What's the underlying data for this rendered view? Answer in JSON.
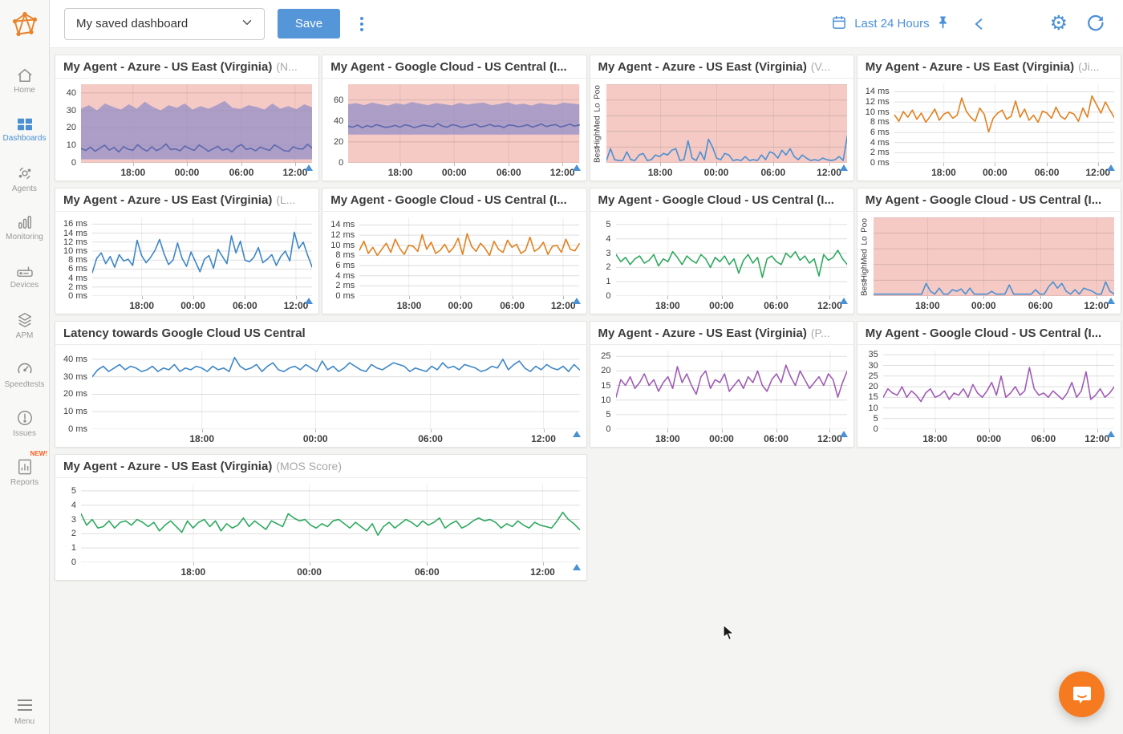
{
  "topbar": {
    "dashboard_selector": "My saved dashboard",
    "save_label": "Save",
    "time_range": "Last 24 Hours"
  },
  "sidebar": {
    "items": [
      {
        "label": "Home",
        "icon": "home-icon",
        "active": false
      },
      {
        "label": "Dashboards",
        "icon": "dashboards-icon",
        "active": true
      },
      {
        "label": "Agents",
        "icon": "agents-icon",
        "active": false
      },
      {
        "label": "Monitoring",
        "icon": "monitoring-icon",
        "active": false
      },
      {
        "label": "Devices",
        "icon": "devices-icon",
        "active": false
      },
      {
        "label": "APM",
        "icon": "apm-icon",
        "active": false
      },
      {
        "label": "Speedtests",
        "icon": "speedtests-icon",
        "active": false
      },
      {
        "label": "Issues",
        "icon": "issues-icon",
        "active": false
      },
      {
        "label": "Reports",
        "icon": "reports-icon",
        "active": false,
        "badge": "NEW!"
      }
    ],
    "menu_label": "Menu"
  },
  "colors": {
    "accent_blue": "#4a90d2",
    "line_blue": "#3e86c6",
    "line_orange": "#e2801f",
    "line_green": "#2fa95f",
    "line_purple": "#a05cb5",
    "band_line": "#5c68ad",
    "band_fill": "#9a92c5",
    "alert_pink": "#f5cac5"
  },
  "chart_data": [
    {
      "type": "line",
      "title": "My Agent - Azure - US East (Virginia)",
      "suffix": "(N...",
      "wide": false,
      "ylim": [
        0,
        45
      ],
      "y_tick_vals": [
        0,
        10,
        20,
        30,
        40
      ],
      "y_tick_labels": [
        "0",
        "10",
        "20",
        "30",
        "40"
      ],
      "bg_alert": true,
      "band": {
        "low": 2,
        "top": [
          31,
          33,
          30,
          34,
          32,
          30.5,
          33.5,
          31,
          35,
          32,
          30,
          33,
          31.5,
          34,
          30.5,
          32.5,
          31,
          33,
          35.5,
          31.5,
          30.8,
          33,
          32,
          30.5,
          34,
          31,
          32.5,
          30.7,
          33.5,
          31.8
        ]
      },
      "line_color": "band_line",
      "values": [
        8.2,
        7.1,
        9.0,
        6.6,
        8.4,
        10.1,
        7.3,
        8.8,
        6.2,
        9.3,
        7.8,
        7.2,
        10.4,
        8.1,
        6.7,
        9.2,
        7.0,
        8.3,
        10.8,
        7.6,
        8.0,
        6.9,
        9.6,
        8.2,
        7.1,
        10.2,
        8.6,
        6.6,
        8.1,
        9.4,
        7.2,
        8.0,
        6.3,
        9.1,
        10.5,
        7.7,
        8.3,
        6.9,
        9.0,
        7.9,
        7.1,
        10.3,
        8.7,
        7.0,
        6.6,
        9.2,
        8.1,
        7.9,
        10.6,
        8.4
      ]
    },
    {
      "type": "line",
      "title": "My Agent - Google Cloud - US Central (I...",
      "suffix": "",
      "wide": false,
      "ylim": [
        0,
        75
      ],
      "y_tick_vals": [
        0,
        20,
        40,
        60
      ],
      "y_tick_labels": [
        "0",
        "20",
        "40",
        "60"
      ],
      "bg_alert": true,
      "band": {
        "low": 27,
        "top": [
          56,
          57,
          55,
          57.5,
          56,
          54.5,
          57,
          55.5,
          58,
          56.5,
          55,
          57,
          56,
          54.8,
          57.2,
          55.6,
          56.8,
          57.5,
          55,
          56.2,
          57.8,
          55.4,
          56.5,
          54.6,
          57,
          56,
          55.2,
          57.4,
          56.6,
          55.8
        ]
      },
      "line_color": "band_line",
      "values": [
        35,
        34,
        36,
        33.5,
        35.5,
        34.2,
        36.5,
        35,
        33.8,
        34.6,
        35.8,
        34,
        36.2,
        35.4,
        33.6,
        34.8,
        36,
        35.2,
        34.4,
        37.5,
        35,
        34,
        36.4,
        35.6,
        33.9,
        34.7,
        35.9,
        36.8,
        34.3,
        35.1,
        36.6,
        34.9,
        35.3,
        33.7,
        36.1,
        35.7,
        34.5,
        35,
        36.3,
        34.1,
        35.5,
        37,
        34.6,
        35.8,
        36.5,
        34.2,
        35.4,
        36.9,
        35.0,
        36.2
      ]
    },
    {
      "type": "line",
      "title": "My Agent - Azure - US East (Virginia)",
      "suffix": "(V...",
      "wide": false,
      "ylim": [
        0,
        5
      ],
      "y_tick_vals": [
        0,
        1,
        2,
        3,
        4,
        5
      ],
      "y_tick_labels": [],
      "y_cat_labels": [
        "Poo",
        "Lo",
        "Med",
        "High",
        "Best"
      ],
      "bg_alert": true,
      "line_color": "accent_blue",
      "values": [
        0.15,
        0.9,
        0.2,
        0.15,
        0.15,
        0.7,
        0.2,
        0.15,
        0.5,
        0.6,
        0.15,
        0.2,
        0.5,
        0.4,
        0.6,
        0.5,
        0.8,
        0.9,
        0.15,
        0.2,
        1.4,
        0.3,
        0.15,
        0.7,
        0.2,
        1.5,
        1.0,
        0.3,
        0.2,
        0.6,
        0.5,
        0.15,
        0.2,
        0.15,
        0.4,
        0.15,
        0.2,
        0.15,
        0.5,
        0.2,
        0.7,
        0.6,
        0.3,
        0.8,
        0.5,
        0.9,
        0.4,
        0.2,
        0.5,
        0.3,
        0.15,
        0.2,
        0.15,
        0.3,
        0.2,
        0.15,
        0.2,
        0.4,
        0.15,
        1.7
      ]
    },
    {
      "type": "line",
      "title": "My Agent - Azure - US East (Virginia)",
      "suffix": "(Ji...",
      "wide": false,
      "ylim": [
        0,
        15.5
      ],
      "y_tick_vals": [
        0,
        2,
        4,
        6,
        8,
        10,
        12,
        14
      ],
      "y_tick_labels": [
        "0 ms",
        "2 ms",
        "4 ms",
        "6 ms",
        "8 ms",
        "10 ms",
        "12 ms",
        "14 ms"
      ],
      "bg_alert": false,
      "line_color": "line_orange",
      "values": [
        9.5,
        8.2,
        10.1,
        9.0,
        10.4,
        8.6,
        9.8,
        8.0,
        9.2,
        10.6,
        8.4,
        9.6,
        10.0,
        8.8,
        9.4,
        12.8,
        10.2,
        9.0,
        8.2,
        10.8,
        9.6,
        6.1,
        8.8,
        9.8,
        10.4,
        8.6,
        9.2,
        12.2,
        9.0,
        10.6,
        8.4,
        9.4,
        8.0,
        10.2,
        9.8,
        8.8,
        11.0,
        9.2,
        8.6,
        10.0,
        9.6,
        8.2,
        10.8,
        9.0,
        13.2,
        11.5,
        9.8,
        12.0,
        10.4,
        8.9
      ]
    },
    {
      "type": "line",
      "title": "My Agent - Azure - US East (Virginia)",
      "suffix": "(L...",
      "wide": false,
      "ylim": [
        0,
        17.5
      ],
      "y_tick_vals": [
        0,
        2,
        4,
        6,
        8,
        10,
        12,
        14,
        16
      ],
      "y_tick_labels": [
        "0 ms",
        "2 ms",
        "4 ms",
        "6 ms",
        "8 ms",
        "10 ms",
        "12 ms",
        "14 ms",
        "16 ms"
      ],
      "bg_alert": false,
      "line_color": "line_blue",
      "values": [
        5.2,
        8.4,
        9.6,
        7.2,
        8.8,
        6.4,
        9.2,
        7.8,
        8.2,
        6.8,
        12.4,
        9.0,
        7.4,
        8.6,
        10.2,
        12.6,
        9.4,
        7.0,
        8.0,
        11.8,
        8.4,
        6.6,
        9.8,
        7.6,
        5.4,
        8.2,
        9.0,
        6.2,
        10.4,
        8.8,
        7.2,
        13.4,
        9.6,
        12.2,
        8.0,
        7.6,
        8.6,
        10.8,
        7.4,
        8.2,
        9.2,
        6.8,
        8.8,
        10.0,
        7.8,
        14.2,
        10.6,
        12.0,
        9.0,
        6.4
      ]
    },
    {
      "type": "line",
      "title": "My Agent - Google Cloud - US Central (I...",
      "suffix": "",
      "wide": false,
      "ylim": [
        0,
        15.5
      ],
      "y_tick_vals": [
        0,
        2,
        4,
        6,
        8,
        10,
        12,
        14
      ],
      "y_tick_labels": [
        "0 ms",
        "2 ms",
        "4 ms",
        "6 ms",
        "8 ms",
        "10 ms",
        "12 ms",
        "14 ms"
      ],
      "bg_alert": false,
      "line_color": "line_orange",
      "values": [
        9.0,
        10.8,
        8.4,
        9.6,
        8.0,
        9.2,
        10.4,
        8.6,
        11.2,
        9.4,
        8.2,
        10.0,
        9.8,
        8.8,
        12.1,
        9.2,
        10.6,
        8.4,
        9.0,
        10.2,
        8.6,
        9.6,
        11.4,
        8.2,
        12.3,
        9.8,
        8.8,
        10.4,
        9.4,
        8.0,
        10.8,
        9.2,
        8.6,
        11.0,
        9.6,
        10.2,
        8.4,
        9.0,
        11.6,
        8.8,
        9.4,
        10.6,
        8.2,
        9.8,
        10.0,
        8.6,
        11.2,
        9.2,
        8.9,
        10.3
      ]
    },
    {
      "type": "line",
      "title": "My Agent - Google Cloud - US Central (I...",
      "suffix": "",
      "wide": false,
      "ylim": [
        0,
        5.5
      ],
      "y_tick_vals": [
        0,
        1,
        2,
        3,
        4,
        5
      ],
      "y_tick_labels": [
        "0",
        "1",
        "2",
        "3",
        "4",
        "5"
      ],
      "bg_alert": false,
      "line_color": "line_green",
      "values": [
        2.9,
        2.4,
        2.7,
        2.2,
        2.6,
        2.8,
        2.3,
        2.5,
        2.9,
        2.1,
        2.6,
        2.4,
        3.1,
        2.7,
        2.2,
        2.8,
        2.5,
        2.3,
        2.9,
        2.6,
        2.0,
        2.7,
        2.4,
        2.8,
        2.2,
        2.6,
        1.6,
        2.5,
        2.9,
        2.3,
        2.7,
        1.3,
        2.6,
        2.8,
        2.4,
        2.2,
        3.0,
        2.7,
        3.1,
        2.5,
        2.8,
        2.3,
        2.6,
        1.4,
        2.9,
        2.5,
        2.7,
        3.2,
        2.6,
        2.2
      ]
    },
    {
      "type": "line",
      "title": "My Agent - Google Cloud - US Central (I...",
      "suffix": "",
      "wide": false,
      "ylim": [
        0,
        5
      ],
      "y_tick_vals": [
        0,
        1,
        2,
        3,
        4,
        5
      ],
      "y_tick_labels": [],
      "y_cat_labels": [
        "Poo",
        "Lo",
        "Med",
        "High",
        "Best"
      ],
      "bg_alert": true,
      "line_color": "accent_blue",
      "values": [
        0.12,
        0.12,
        0.12,
        0.12,
        0.12,
        0.12,
        0.12,
        0.12,
        0.12,
        0.12,
        0.12,
        0.12,
        0.8,
        0.3,
        0.12,
        0.5,
        0.12,
        0.12,
        0.4,
        0.3,
        0.45,
        0.12,
        0.5,
        0.12,
        0.12,
        0.12,
        0.12,
        0.3,
        0.12,
        0.12,
        0.12,
        0.7,
        0.12,
        0.12,
        0.12,
        0.12,
        0.12,
        0.4,
        0.12,
        0.12,
        0.6,
        0.9,
        0.5,
        0.8,
        0.3,
        0.12,
        0.4,
        0.12,
        0.5,
        0.4,
        0.3,
        0.12,
        0.12,
        0.9,
        0.3,
        0.12
      ]
    },
    {
      "type": "line",
      "title": "Latency towards Google Cloud US Central",
      "suffix": "",
      "wide": true,
      "ylim": [
        0,
        45
      ],
      "y_tick_vals": [
        0,
        10,
        20,
        30,
        40
      ],
      "y_tick_labels": [
        "0 ms",
        "10 ms",
        "20 ms",
        "30 ms",
        "40 ms"
      ],
      "bg_alert": false,
      "line_color": "line_blue",
      "values": [
        30,
        34,
        36,
        33,
        35,
        37,
        34,
        36,
        35,
        33,
        34,
        36,
        33,
        35,
        34,
        37,
        33,
        35,
        34,
        36,
        35,
        33,
        36,
        34,
        35,
        33,
        41,
        36,
        34,
        35,
        37,
        33,
        36,
        38,
        34,
        33,
        35,
        36,
        34,
        37,
        35,
        33,
        39,
        34,
        36,
        33,
        35,
        38,
        36,
        34,
        33,
        37,
        35,
        34,
        36,
        38,
        37,
        36,
        33,
        35,
        34,
        33,
        36,
        34,
        38,
        35,
        36,
        34,
        37,
        36,
        35,
        33,
        34,
        36,
        35,
        40,
        34,
        37,
        39,
        35,
        33,
        36,
        34,
        37,
        35,
        34,
        36,
        33,
        37,
        34
      ]
    },
    {
      "type": "line",
      "title": "My Agent - Azure - US East (Virginia)",
      "suffix": "(P...",
      "wide": false,
      "ylim": [
        0,
        27
      ],
      "y_tick_vals": [
        0,
        5,
        10,
        15,
        20,
        25
      ],
      "y_tick_labels": [
        "0",
        "5",
        "10",
        "15",
        "20",
        "25"
      ],
      "bg_alert": false,
      "line_color": "line_purple",
      "values": [
        11,
        17,
        15,
        18,
        14,
        16,
        19,
        15,
        17,
        13,
        16,
        18,
        14,
        21.5,
        16,
        19,
        15,
        12,
        18,
        20,
        14,
        17,
        16,
        19,
        13,
        15,
        17,
        14,
        18,
        16,
        20,
        15,
        13,
        17,
        19,
        16,
        22,
        18,
        15,
        20,
        17,
        14,
        16,
        18,
        15,
        19,
        17,
        11,
        16,
        20
      ]
    },
    {
      "type": "line",
      "title": "My Agent - Google Cloud - US Central (I...",
      "suffix": "",
      "wide": false,
      "ylim": [
        0,
        37
      ],
      "y_tick_vals": [
        0,
        5,
        10,
        15,
        20,
        25,
        30,
        35
      ],
      "y_tick_labels": [
        "0",
        "5",
        "10",
        "15",
        "20",
        "25",
        "30",
        "35"
      ],
      "bg_alert": false,
      "line_color": "line_purple",
      "values": [
        15,
        19,
        17,
        16,
        20,
        15,
        18,
        16,
        13,
        17,
        19,
        15,
        16,
        18,
        14,
        17,
        16,
        19,
        15,
        21,
        17,
        15,
        18,
        22,
        16,
        25,
        15,
        17,
        20,
        16,
        18,
        29,
        19,
        16,
        17,
        15,
        18,
        16,
        14,
        17,
        22,
        15,
        18,
        27,
        14,
        16,
        19,
        15,
        17,
        20
      ]
    },
    {
      "type": "line",
      "title": "My Agent - Azure - US East (Virginia)",
      "suffix": "(MOS Score)",
      "wide": true,
      "ylim": [
        0,
        5.5
      ],
      "y_tick_vals": [
        0,
        1,
        2,
        3,
        4,
        5
      ],
      "y_tick_labels": [
        "0",
        "1",
        "2",
        "3",
        "4",
        "5"
      ],
      "bg_alert": false,
      "line_color": "line_green",
      "values": [
        3.4,
        2.6,
        3.0,
        2.4,
        2.5,
        2.9,
        2.4,
        2.8,
        2.9,
        2.6,
        3.0,
        2.8,
        2.5,
        2.8,
        2.2,
        2.6,
        2.9,
        2.5,
        2.1,
        2.9,
        2.4,
        2.8,
        3.0,
        2.5,
        2.9,
        2.2,
        2.7,
        2.4,
        2.6,
        3.1,
        2.5,
        2.9,
        2.6,
        2.3,
        2.9,
        2.7,
        2.5,
        3.4,
        3.1,
        2.9,
        3.0,
        2.6,
        2.4,
        2.7,
        2.5,
        2.9,
        3.0,
        2.7,
        2.4,
        2.8,
        2.5,
        2.2,
        2.7,
        1.9,
        2.5,
        2.8,
        2.4,
        2.7,
        3.0,
        2.8,
        2.5,
        2.9,
        2.6,
        2.8,
        3.1,
        2.4,
        2.7,
        2.9,
        2.4,
        2.6,
        2.9,
        3.1,
        2.9,
        3.0,
        2.8,
        2.4,
        2.7,
        2.5,
        2.9,
        2.6,
        2.4,
        2.8,
        2.6,
        2.5,
        2.4,
        2.9,
        3.5,
        3.0,
        2.7,
        2.3
      ]
    }
  ],
  "x_ticks": [
    {
      "pos": 0.225,
      "label": "18:00"
    },
    {
      "pos": 0.458,
      "label": "00:00"
    },
    {
      "pos": 0.694,
      "label": "06:00"
    },
    {
      "pos": 0.926,
      "label": "12:00"
    }
  ]
}
